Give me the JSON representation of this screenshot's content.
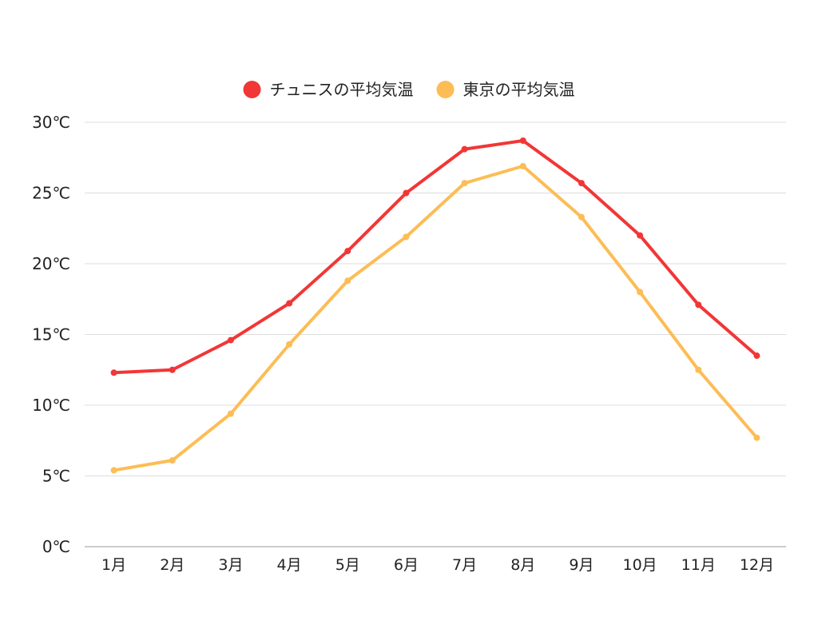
{
  "chart_data": {
    "type": "line",
    "categories": [
      "1月",
      "2月",
      "3月",
      "4月",
      "5月",
      "6月",
      "7月",
      "8月",
      "9月",
      "10月",
      "11月",
      "12月"
    ],
    "y_ticks": [
      "0℃",
      "5℃",
      "10℃",
      "15℃",
      "20℃",
      "25℃",
      "30℃"
    ],
    "ylim": [
      0,
      30
    ],
    "grid": true,
    "legend_position": "top",
    "series": [
      {
        "name": "チュニスの平均気温",
        "color": "#f23636",
        "values": [
          12.3,
          12.5,
          14.6,
          17.2,
          20.9,
          25.0,
          28.1,
          28.7,
          25.7,
          22.0,
          17.1,
          13.5
        ]
      },
      {
        "name": "東京の平均気温",
        "color": "#fcbd55",
        "values": [
          5.4,
          6.1,
          9.4,
          14.3,
          18.8,
          21.9,
          25.7,
          26.9,
          23.3,
          18.0,
          12.5,
          7.7
        ]
      }
    ]
  }
}
